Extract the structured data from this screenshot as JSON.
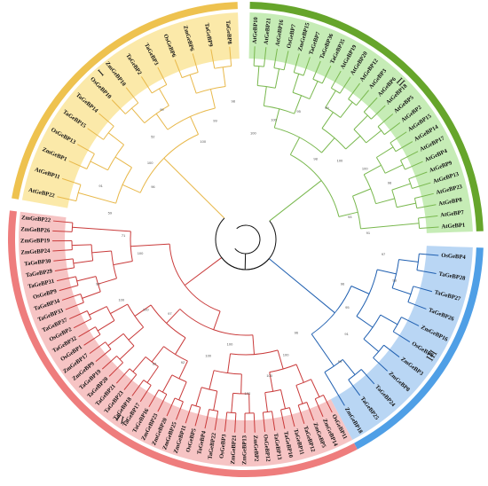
{
  "figure": {
    "clades": [
      {
        "id": "I",
        "roman": "I",
        "ring_color": "#eec24f",
        "band_color": "#fbe9a9",
        "branch_color": "#e8b84a",
        "start_deg": 358,
        "end_deg": 280,
        "leaves": [
          "TaGeBP8",
          "TaGeBP9",
          "ZmGeBP6",
          "OsGeBP6",
          "TaGeBP3",
          "TaGeBP2",
          "ZmGeBP10",
          "OsGeBP10",
          "TaGeBP14",
          "TaGeBP15",
          "OsGeBP13",
          "ZmGeBP1",
          "AtGeBP11",
          "AtGeBP22"
        ]
      },
      {
        "id": "II",
        "roman": "II",
        "ring_color": "#66a52b",
        "band_color": "#c6ecb6",
        "branch_color": "#79b84e",
        "start_deg": 1,
        "end_deg": 88,
        "leaves": [
          "AtGeBP10",
          "AtGeBP21",
          "AtGeBP16",
          "OsGeBP7",
          "ZmGeBP15",
          "TaGeBP7",
          "TaGeBP36",
          "TaGeBP35",
          "AtGeBP19",
          "AtGeBP20",
          "AtGeBP12",
          "AtGeBP3",
          "AtGeBP6",
          "AtGeBP18",
          "AtGeBP5",
          "AtGeBP2",
          "AtGeBP15",
          "AtGeBP14",
          "AtGeBP17",
          "AtGeBP4",
          "AtGeBP9",
          "AtGeBP13",
          "AtGeBP23",
          "AtGeBP8",
          "AtGeBP7",
          "AtGeBP1"
        ]
      },
      {
        "id": "III",
        "roman": "III",
        "ring_color": "#4f9fe6",
        "band_color": "#b9d6f4",
        "branch_color": "#1f5fb0",
        "start_deg": 92,
        "end_deg": 152,
        "leaves": [
          "OsGeBP4",
          "TaGeBP28",
          "TaGeBP27",
          "TaGeBP26",
          "ZmGeBP16",
          "OsGeBP8",
          "ZmGeBP3",
          "ZmGeBP8",
          "TaGeBP24",
          "TaGeBP25",
          "ZmGeBP18"
        ]
      },
      {
        "id": "IV",
        "roman": "IV",
        "ring_color": "#ee7d7d",
        "band_color": "#f6c4c4",
        "branch_color": "#c93a3a",
        "start_deg": 152,
        "end_deg": 277,
        "leaves": [
          "OsGeBP11",
          "ZmGeBP14",
          "ZmGeBP5",
          "TaGeBP12",
          "TaGeBP11",
          "TaGeBP10",
          "TaGeBP13",
          "OsGeBP12",
          "ZmGeBP2",
          "ZmGeBP13",
          "ZmGeBP21",
          "OsGeBP3",
          "TaGeBP22",
          "TaGeBP4",
          "OsGeBP5",
          "ZmGeBP11",
          "ZmGeBP25",
          "ZmGeBP20",
          "ZmGeBP23",
          "TaGeBP16",
          "TaGeBP17",
          "TaGeBP18",
          "TaGeBP23",
          "TaGeBP21",
          "TaGeBP20",
          "TaGeBP19",
          "ZmGeBP9",
          "ZmGeBP17",
          "OsGeBP1",
          "TaGeBP32",
          "OsGeBP2",
          "TaGeBP37",
          "TaGeBP33",
          "TaGeBP34",
          "OsGeBP9",
          "TaGeBP31",
          "TaGeBP29",
          "TaGeBP30",
          "ZmGeBP24",
          "ZmGeBP19",
          "ZmGeBP26",
          "ZmGeBP22"
        ]
      }
    ],
    "bootstrap_values": [
      "100",
      "100",
      "95",
      "99",
      "98",
      "100",
      "100",
      "98",
      "93",
      "91",
      "97",
      "98",
      "96",
      "95",
      "91",
      "99",
      "96",
      "100",
      "100",
      "100",
      "100",
      "100",
      "92",
      "62",
      "97",
      "100",
      "100",
      "98",
      "100",
      "71",
      "59",
      "91",
      "96",
      "100",
      "52",
      "99",
      "100",
      "99",
      "98"
    ],
    "root_color": "#111111"
  }
}
